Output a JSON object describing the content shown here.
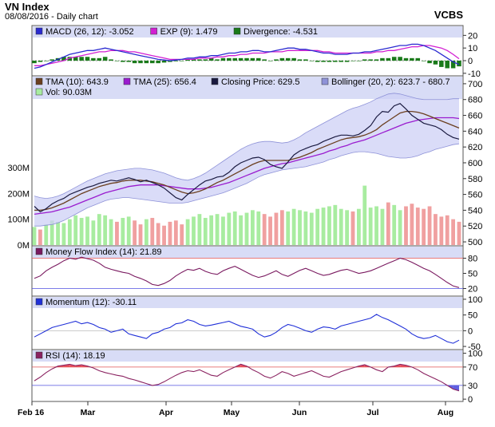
{
  "header": {
    "title": "VN Index",
    "subtitle": "08/08/2016 - Daily chart",
    "source": "VCBS"
  },
  "x_labels": [
    "Feb 16",
    "Mar",
    "Apr",
    "May",
    "Jun",
    "Jul",
    "Aug"
  ],
  "colors": {
    "closing": "#1a1a40",
    "tma10": "#6b3f1f",
    "tma25": "#9a1ccf",
    "bollinger_fill": "#cdd0f5",
    "bollinger_line": "#8e92d8",
    "vol_up": "#a8eca0",
    "vol_down": "#f0a0a0",
    "macd": "#2a2ad0",
    "signal": "#d21fd2",
    "divergence": "#1a7a1a",
    "mfi": "#7a1a60",
    "momentum": "#2030d8",
    "rsi": "#8a2260",
    "rsi_fill": "#e85060"
  },
  "chart_data": [
    {
      "type": "bar",
      "panel": "macd",
      "legend": [
        {
          "text": "MACD (26, 12): -3.052",
          "color": "#2a2ad0"
        },
        {
          "text": "EXP (9): 1.479",
          "color": "#d21fd2"
        },
        {
          "text": "Divergence: -4.531",
          "color": "#1a7a1a"
        }
      ],
      "y_ticks": [
        "20",
        "10",
        "0",
        "-10"
      ],
      "ylim": [
        -12,
        24
      ],
      "macd": [
        -6,
        -5,
        -3,
        -1,
        1,
        3,
        5,
        6,
        7,
        8,
        8,
        9,
        10,
        9,
        8,
        7,
        6,
        5,
        4,
        3,
        2,
        1,
        0.5,
        0,
        0.5,
        1,
        2,
        2,
        3,
        3,
        4,
        4,
        5,
        6,
        6,
        7,
        7,
        8,
        8,
        7,
        7,
        8,
        9,
        10,
        10,
        9,
        9,
        8,
        7,
        6,
        6,
        5,
        5,
        5,
        6,
        6,
        7,
        7,
        8,
        9,
        10,
        11,
        12,
        12,
        13,
        13,
        12,
        10,
        8,
        5,
        2,
        -1,
        -3
      ],
      "signal": [
        -4,
        -4,
        -3,
        -2,
        -1,
        0,
        2,
        3,
        4,
        5,
        6,
        7,
        7,
        8,
        8,
        8,
        7,
        7,
        6,
        5,
        4,
        3,
        2,
        1,
        1,
        1,
        1,
        1,
        2,
        2,
        2,
        3,
        3,
        4,
        4,
        5,
        5,
        6,
        6,
        6,
        7,
        7,
        7,
        8,
        8,
        8,
        8,
        8,
        8,
        7,
        7,
        6,
        6,
        6,
        6,
        6,
        6,
        6,
        7,
        7,
        8,
        8,
        9,
        10,
        11,
        11,
        12,
        12,
        11,
        10,
        8,
        5,
        1.5
      ]
    },
    {
      "type": "line",
      "panel": "price",
      "legend": [
        {
          "text": "TMA (10): 643.9",
          "color": "#6b3f1f"
        },
        {
          "text": "TMA (25): 656.4",
          "color": "#9a1ccf"
        },
        {
          "text": "Closing Price: 629.5",
          "color": "#1a1a40"
        },
        {
          "text": "Bollinger (20, 2): 623.7 - 680.7",
          "color": "#8e92d8"
        },
        {
          "text": "Vol: 90.03M",
          "color": "#a8eca0"
        }
      ],
      "y_ticks": [
        "700",
        "680",
        "660",
        "640",
        "620",
        "600",
        "580",
        "560",
        "540",
        "520",
        "500"
      ],
      "ylim": [
        495,
        710
      ],
      "vol_ticks": [
        "300M",
        "200M",
        "100M",
        "0M"
      ],
      "vol_lim": [
        0,
        340
      ],
      "closing": [
        545,
        538,
        542,
        548,
        552,
        555,
        560,
        563,
        566,
        569,
        571,
        574,
        576,
        578,
        577,
        579,
        581,
        579,
        576,
        578,
        575,
        572,
        568,
        562,
        556,
        553,
        560,
        566,
        572,
        577,
        579,
        582,
        583,
        588,
        595,
        600,
        603,
        606,
        607,
        604,
        598,
        595,
        593,
        601,
        610,
        615,
        618,
        621,
        623,
        627,
        630,
        633,
        635,
        635,
        634,
        636,
        641,
        647,
        658,
        665,
        664,
        672,
        675,
        668,
        660,
        655,
        650,
        648,
        646,
        642,
        636,
        632,
        630
      ],
      "tma10": [
        540,
        540,
        541,
        543,
        546,
        549,
        553,
        557,
        561,
        564,
        567,
        570,
        572,
        574,
        575,
        577,
        578,
        578,
        578,
        577,
        576,
        574,
        572,
        569,
        566,
        563,
        561,
        562,
        564,
        567,
        571,
        575,
        578,
        582,
        586,
        590,
        594,
        598,
        601,
        603,
        603,
        603,
        603,
        603,
        605,
        607,
        610,
        613,
        617,
        620,
        623,
        626,
        629,
        631,
        632,
        633,
        635,
        638,
        642,
        648,
        653,
        658,
        663,
        665,
        665,
        664,
        662,
        659,
        656,
        653,
        650,
        647,
        644
      ],
      "tma25": [
        535,
        536,
        537,
        538,
        540,
        542,
        544,
        547,
        550,
        553,
        556,
        559,
        562,
        564,
        566,
        568,
        570,
        571,
        572,
        572,
        572,
        572,
        571,
        570,
        569,
        568,
        567,
        567,
        567,
        568,
        569,
        571,
        573,
        575,
        578,
        581,
        584,
        587,
        590,
        593,
        595,
        597,
        599,
        600,
        602,
        604,
        606,
        608,
        610,
        612,
        615,
        617,
        620,
        622,
        625,
        627,
        629,
        632,
        635,
        638,
        641,
        644,
        647,
        650,
        652,
        654,
        655,
        656,
        657,
        657,
        657,
        657,
        656
      ],
      "boll_upper": [
        558,
        556,
        555,
        556,
        558,
        561,
        565,
        569,
        573,
        577,
        580,
        583,
        586,
        588,
        590,
        591,
        592,
        593,
        593,
        592,
        591,
        589,
        587,
        584,
        581,
        579,
        578,
        580,
        583,
        587,
        592,
        597,
        602,
        607,
        612,
        617,
        621,
        624,
        626,
        627,
        627,
        626,
        625,
        626,
        629,
        633,
        638,
        642,
        646,
        650,
        654,
        658,
        662,
        666,
        669,
        671,
        674,
        677,
        681,
        684,
        687,
        688,
        687,
        685,
        683,
        681,
        680,
        680,
        680,
        680,
        680,
        681,
        681
      ],
      "boll_lower": [
        520,
        520,
        521,
        522,
        524,
        527,
        531,
        535,
        539,
        543,
        546,
        549,
        552,
        554,
        555,
        556,
        556,
        555,
        554,
        553,
        552,
        551,
        550,
        549,
        549,
        549,
        550,
        552,
        554,
        556,
        558,
        560,
        562,
        565,
        568,
        571,
        574,
        578,
        582,
        585,
        587,
        589,
        591,
        592,
        593,
        594,
        595,
        597,
        599,
        601,
        604,
        606,
        609,
        611,
        613,
        614,
        614,
        613,
        612,
        610,
        608,
        607,
        606,
        606,
        607,
        609,
        612,
        614,
        617,
        619,
        621,
        623,
        624
      ],
      "volume": [
        70,
        60,
        80,
        95,
        90,
        85,
        100,
        115,
        105,
        110,
        95,
        120,
        115,
        100,
        90,
        105,
        110,
        95,
        80,
        100,
        105,
        85,
        75,
        90,
        95,
        80,
        100,
        110,
        120,
        105,
        115,
        120,
        110,
        125,
        130,
        115,
        125,
        135,
        130,
        120,
        110,
        125,
        135,
        130,
        140,
        135,
        130,
        125,
        140,
        145,
        150,
        155,
        140,
        135,
        130,
        140,
        230,
        145,
        150,
        140,
        165,
        155,
        135,
        150,
        160,
        145,
        140,
        150,
        120,
        110,
        115,
        100,
        90
      ]
    },
    {
      "type": "line",
      "panel": "mfi",
      "legend": [
        {
          "text": "Money Flow Index (14): 21.89",
          "color": "#7a1a60"
        }
      ],
      "y_ticks": [
        "80",
        "50",
        "20"
      ],
      "ylim": [
        5,
        95
      ],
      "values": [
        40,
        45,
        55,
        62,
        68,
        75,
        80,
        78,
        82,
        79,
        76,
        70,
        62,
        58,
        55,
        52,
        50,
        44,
        40,
        35,
        28,
        26,
        30,
        36,
        45,
        52,
        58,
        56,
        60,
        54,
        50,
        48,
        55,
        60,
        64,
        58,
        52,
        46,
        42,
        45,
        50,
        55,
        48,
        44,
        50,
        56,
        60,
        55,
        50,
        46,
        48,
        52,
        56,
        58,
        54,
        50,
        52,
        55,
        60,
        65,
        70,
        75,
        80,
        77,
        72,
        66,
        60,
        55,
        48,
        40,
        32,
        25,
        21.89
      ]
    },
    {
      "type": "line",
      "panel": "momentum",
      "legend": [
        {
          "text": "Momentum (12): -30.11",
          "color": "#2030d8"
        }
      ],
      "y_ticks": [
        "100",
        "50",
        "0",
        "-50"
      ],
      "ylim": [
        -60,
        110
      ],
      "values": [
        -20,
        -10,
        0,
        10,
        15,
        20,
        25,
        30,
        22,
        26,
        20,
        10,
        5,
        -5,
        0,
        5,
        -10,
        -15,
        -20,
        -25,
        -10,
        -5,
        5,
        10,
        22,
        25,
        35,
        30,
        20,
        15,
        18,
        22,
        26,
        30,
        22,
        14,
        10,
        5,
        -10,
        -20,
        -15,
        -5,
        10,
        20,
        15,
        8,
        0,
        -5,
        5,
        12,
        10,
        5,
        15,
        20,
        25,
        30,
        35,
        40,
        52,
        42,
        35,
        25,
        15,
        5,
        -10,
        -20,
        -25,
        -22,
        -15,
        -25,
        -35,
        -40,
        -30.11
      ]
    },
    {
      "type": "area",
      "panel": "rsi",
      "legend": [
        {
          "text": "RSI (14): 18.19",
          "color": "#8a2260"
        }
      ],
      "y_ticks": [
        "100",
        "70",
        "30",
        "0"
      ],
      "ylim": [
        -5,
        108
      ],
      "upper": 70,
      "lower": 30,
      "values": [
        40,
        48,
        58,
        66,
        72,
        74,
        76,
        73,
        75,
        72,
        68,
        62,
        58,
        55,
        52,
        50,
        45,
        42,
        38,
        34,
        30,
        32,
        38,
        45,
        52,
        58,
        62,
        60,
        64,
        58,
        52,
        50,
        58,
        64,
        70,
        76,
        72,
        64,
        58,
        50,
        46,
        52,
        60,
        56,
        50,
        54,
        58,
        62,
        56,
        50,
        48,
        54,
        60,
        64,
        68,
        72,
        75,
        70,
        64,
        60,
        70,
        72,
        76,
        74,
        70,
        64,
        56,
        50,
        44,
        38,
        30,
        22,
        18.19
      ]
    }
  ]
}
